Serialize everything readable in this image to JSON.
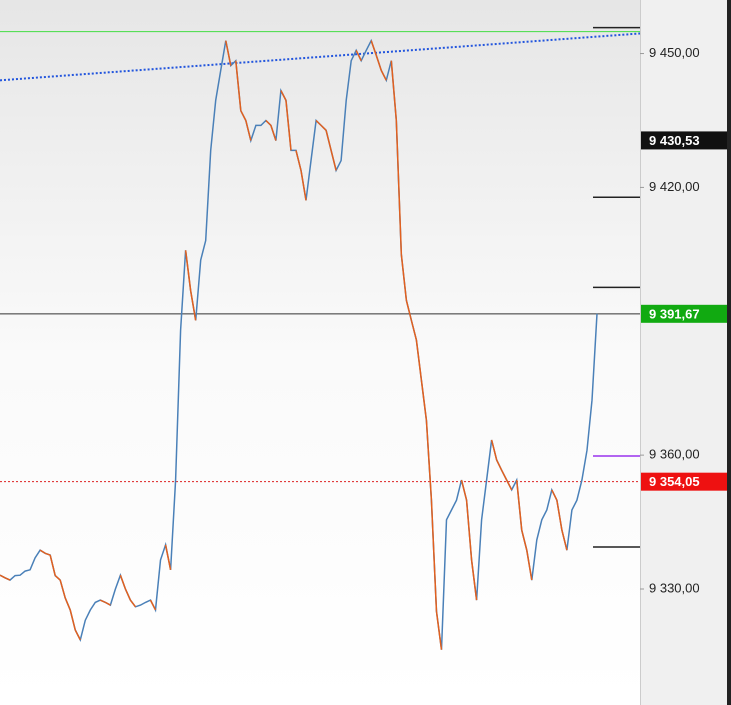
{
  "chart_data": {
    "type": "line",
    "series": [
      {
        "color": "#4a80b8",
        "down_color": "#e2601e",
        "values": [
          9333.1,
          9332.5,
          9332.0,
          9333,
          9333.1,
          9334,
          9334.3,
          9337,
          9338.7,
          9338,
          9337.6,
          9333,
          9332.0,
          9328,
          9325.3,
          9320.8,
          9318.6,
          9323,
          9325.3,
          9327,
          9327.5,
          9327,
          9326.4,
          9330,
          9333.1,
          9330,
          9327.5,
          9326,
          9326.4,
          9327,
          9327.5,
          9325.3,
          9336.5,
          9339.9,
          9334.3,
          9354.4,
          9388.0,
          9405.9,
          9396.9,
          9390.2,
          9403.7,
          9408.1,
          9428.3,
          9439.5,
          9446.2,
          9452.9,
          9447.3,
          9448.4,
          9437.2,
          9435.0,
          9430.5,
          9433.9,
          9433.9,
          9435.0,
          9433.9,
          9430.5,
          9441.7,
          9439.5,
          9428.3,
          9428.3,
          9423.8,
          9417.1,
          9426.0,
          9435.0,
          9433.9,
          9432.8,
          9428.3,
          9423.8,
          9426.0,
          9439.5,
          9448.4,
          9450.7,
          9448.4,
          9450.7,
          9452.9,
          9449.6,
          9446.2,
          9444.0,
          9448.4,
          9435.0,
          9405,
          9394.7,
          9390.2,
          9385.8,
          9376.8,
          9367.8,
          9349.9,
          9325,
          9316.4,
          9345.5,
          9347.7,
          9349.9,
          9354.4,
          9349.9,
          9336.5,
          9327.5,
          9345.5,
          9354.4,
          9363.4,
          9358.9,
          9356.6,
          9354.4,
          9352.2,
          9354.4,
          9343.2,
          9338.7,
          9332.0,
          9341.0,
          9345.5,
          9347.7,
          9352.2,
          9349.9,
          9343.2,
          9338.7,
          9347.7,
          9349.9,
          9354.4,
          9361.1,
          9372.3,
          9391.67
        ]
      }
    ],
    "ylim": [
      9304,
      9462
    ],
    "yticks": [
      {
        "value": 9450,
        "label": "9 450,00"
      },
      {
        "value": 9420,
        "label": "9 420,00"
      },
      {
        "value": 9360,
        "label": "9 360,00"
      },
      {
        "value": 9330,
        "label": "9 330,00"
      }
    ],
    "trendline": {
      "start": 9444.0,
      "end": 9454.5,
      "color": "#2255dd"
    },
    "full_lines": [
      {
        "value": 9454.9,
        "color": "#44dd44",
        "dashed": false
      },
      {
        "value": 9391.67,
        "color": "#333333",
        "dashed": false
      },
      {
        "value": 9354.05,
        "color": "#dd2222",
        "dashed": true
      }
    ],
    "short_levels": [
      {
        "value": 9455.8,
        "color": "#222222"
      },
      {
        "value": 9417.8,
        "color": "#222222"
      },
      {
        "value": 9397.6,
        "color": "#222222"
      },
      {
        "value": 9359.8,
        "color": "#9933ee"
      },
      {
        "value": 9339.4,
        "color": "#222222"
      }
    ],
    "price_tags": [
      {
        "value": 9430.53,
        "label": "9 430,53",
        "color": "#111111"
      },
      {
        "value": 9391.67,
        "label": "9 391,67",
        "color": "#11aa11"
      },
      {
        "value": 9354.05,
        "label": "9 354,05",
        "color": "#ee1111"
      }
    ]
  }
}
